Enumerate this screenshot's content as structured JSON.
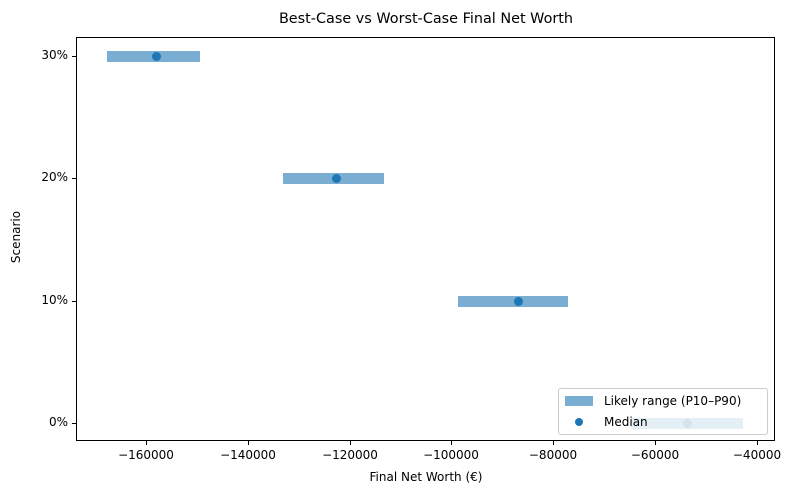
{
  "chart_data": {
    "type": "range-dot",
    "title": "Best-Case vs Worst-Case Final Net Worth",
    "xlabel": "Final Net Worth (€)",
    "ylabel": "Scenario",
    "categories": [
      "0%",
      "10%",
      "20%",
      "30%"
    ],
    "series": [
      {
        "name": "Likely range (P10–P90)",
        "p10": [
          -64700,
          -98700,
          -133100,
          -167700
        ],
        "p90": [
          -42700,
          -77100,
          -113200,
          -149400
        ]
      },
      {
        "name": "Median",
        "values": [
          -53700,
          -86900,
          -122500,
          -158000
        ]
      }
    ],
    "xlim": [
      -174000,
      -36000
    ],
    "xticks": [
      "−160000",
      "−140000",
      "−120000",
      "−100000",
      "−80000",
      "−60000",
      "−40000"
    ],
    "yticks": [
      "0%",
      "10%",
      "20%",
      "30%"
    ],
    "grid": false,
    "legend_position": "lower right",
    "colors": {
      "range": "#1f77b4",
      "range_alpha": 0.6,
      "median": "#1f77b4"
    }
  },
  "title": "Best-Case vs Worst-Case Final Net Worth",
  "xaxis": {
    "label": "Final Net Worth (€)",
    "ticks": [
      "−160000",
      "−140000",
      "−120000",
      "−100000",
      "−80000",
      "−60000",
      "−40000"
    ]
  },
  "yaxis": {
    "label": "Scenario",
    "ticks": [
      "30%",
      "20%",
      "10%",
      "0%"
    ]
  },
  "legend": {
    "range_label": "Likely range (P10–P90)",
    "median_label": "Median"
  }
}
